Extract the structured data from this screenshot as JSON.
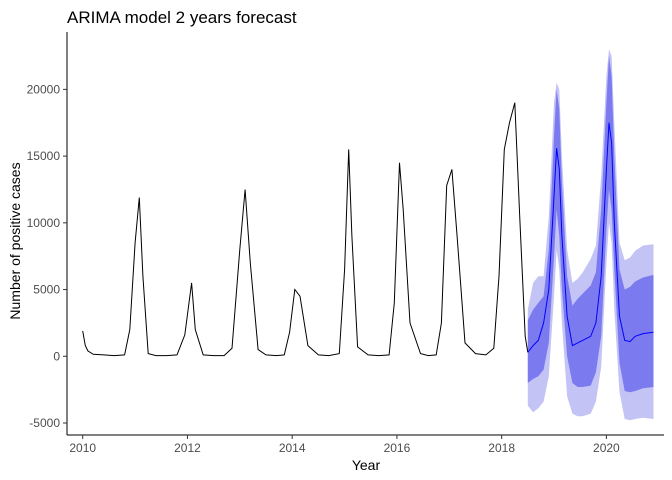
{
  "chart_data": {
    "type": "line",
    "title": "ARIMA model 2 years forecast",
    "xlabel": "Year",
    "ylabel": "Number of positive cases",
    "xlim": [
      2009.7,
      2021.1
    ],
    "ylim": [
      -5900,
      24300
    ],
    "x_ticks": [
      2010,
      2012,
      2014,
      2016,
      2018,
      2020
    ],
    "x_tick_labels": [
      "2010",
      "2012",
      "2014",
      "2016",
      "2018",
      "2020"
    ],
    "y_ticks": [
      -5000,
      0,
      5000,
      10000,
      15000,
      20000
    ],
    "y_tick_labels": [
      "-5000",
      "0",
      "5000",
      "10000",
      "15000",
      "20000"
    ],
    "grid": false,
    "legend": "none",
    "colors": {
      "observed": "#000000",
      "forecast": "#0000ff",
      "band_80": "#7b7bef",
      "band_95": "#c3c3f5"
    },
    "observed": {
      "x": [
        2010.0,
        2010.05,
        2010.1,
        2010.2,
        2010.4,
        2010.6,
        2010.8,
        2010.9,
        2011.0,
        2011.08,
        2011.15,
        2011.25,
        2011.4,
        2011.6,
        2011.8,
        2011.95,
        2012.08,
        2012.15,
        2012.3,
        2012.5,
        2012.7,
        2012.85,
        2013.0,
        2013.1,
        2013.2,
        2013.35,
        2013.5,
        2013.7,
        2013.85,
        2013.95,
        2014.05,
        2014.15,
        2014.3,
        2014.5,
        2014.7,
        2014.9,
        2015.0,
        2015.08,
        2015.14,
        2015.25,
        2015.45,
        2015.65,
        2015.85,
        2015.95,
        2016.05,
        2016.12,
        2016.25,
        2016.45,
        2016.6,
        2016.75,
        2016.85,
        2016.95,
        2017.05,
        2017.15,
        2017.3,
        2017.5,
        2017.7,
        2017.85,
        2017.95,
        2018.05,
        2018.15,
        2018.25,
        2018.35,
        2018.45,
        2018.5
      ],
      "y": [
        1900,
        800,
        400,
        150,
        100,
        50,
        100,
        2000,
        8500,
        11900,
        6000,
        200,
        50,
        50,
        100,
        1600,
        5500,
        2000,
        100,
        50,
        50,
        600,
        8000,
        12500,
        7000,
        500,
        100,
        50,
        100,
        1800,
        5000,
        4500,
        800,
        100,
        50,
        200,
        6500,
        15500,
        9000,
        700,
        100,
        50,
        100,
        4000,
        14500,
        11000,
        2500,
        200,
        50,
        100,
        2500,
        12800,
        14000,
        9000,
        1000,
        200,
        100,
        600,
        6000,
        15500,
        17500,
        19000,
        10000,
        1500,
        300
      ]
    },
    "forecast": {
      "x": [
        2018.5,
        2018.6,
        2018.7,
        2018.8,
        2018.9,
        2019.0,
        2019.05,
        2019.1,
        2019.15,
        2019.25,
        2019.35,
        2019.45,
        2019.55,
        2019.7,
        2019.8,
        2019.9,
        2020.0,
        2020.05,
        2020.1,
        2020.15,
        2020.25,
        2020.35,
        2020.45,
        2020.55,
        2020.7,
        2020.9
      ],
      "y": [
        300,
        800,
        1200,
        2500,
        5000,
        12000,
        15600,
        14000,
        9000,
        3000,
        800,
        1000,
        1200,
        1500,
        2500,
        6000,
        14000,
        17500,
        16000,
        10000,
        3000,
        1200,
        1100,
        1500,
        1700,
        1800
      ],
      "lo80": [
        -2000,
        -1700,
        -1500,
        -1000,
        1000,
        7500,
        11000,
        9000,
        5000,
        0,
        -2000,
        -2300,
        -2300,
        -2200,
        -1200,
        1500,
        9500,
        12500,
        11000,
        6500,
        -500,
        -2600,
        -2700,
        -2600,
        -2400,
        -2300
      ],
      "hi80": [
        2700,
        3500,
        4000,
        4500,
        8000,
        16500,
        20000,
        18500,
        13000,
        6000,
        3800,
        4300,
        4700,
        5300,
        6300,
        11000,
        19000,
        22500,
        21000,
        15000,
        6500,
        5000,
        5200,
        5600,
        5900,
        6100
      ],
      "lo95": [
        -3700,
        -4200,
        -3900,
        -3400,
        -1500,
        4500,
        8000,
        6500,
        2500,
        -3000,
        -4300,
        -4500,
        -4500,
        -4300,
        -3400,
        -800,
        7000,
        10000,
        8500,
        3500,
        -2700,
        -4700,
        -4800,
        -4700,
        -4600,
        -4700
      ],
      "hi95": [
        3500,
        5500,
        6000,
        6000,
        10500,
        19000,
        20500,
        20000,
        15000,
        8000,
        5500,
        5800,
        6300,
        7300,
        8300,
        13500,
        21000,
        23000,
        22500,
        17500,
        8500,
        7200,
        7400,
        7900,
        8300,
        8400
      ]
    }
  }
}
